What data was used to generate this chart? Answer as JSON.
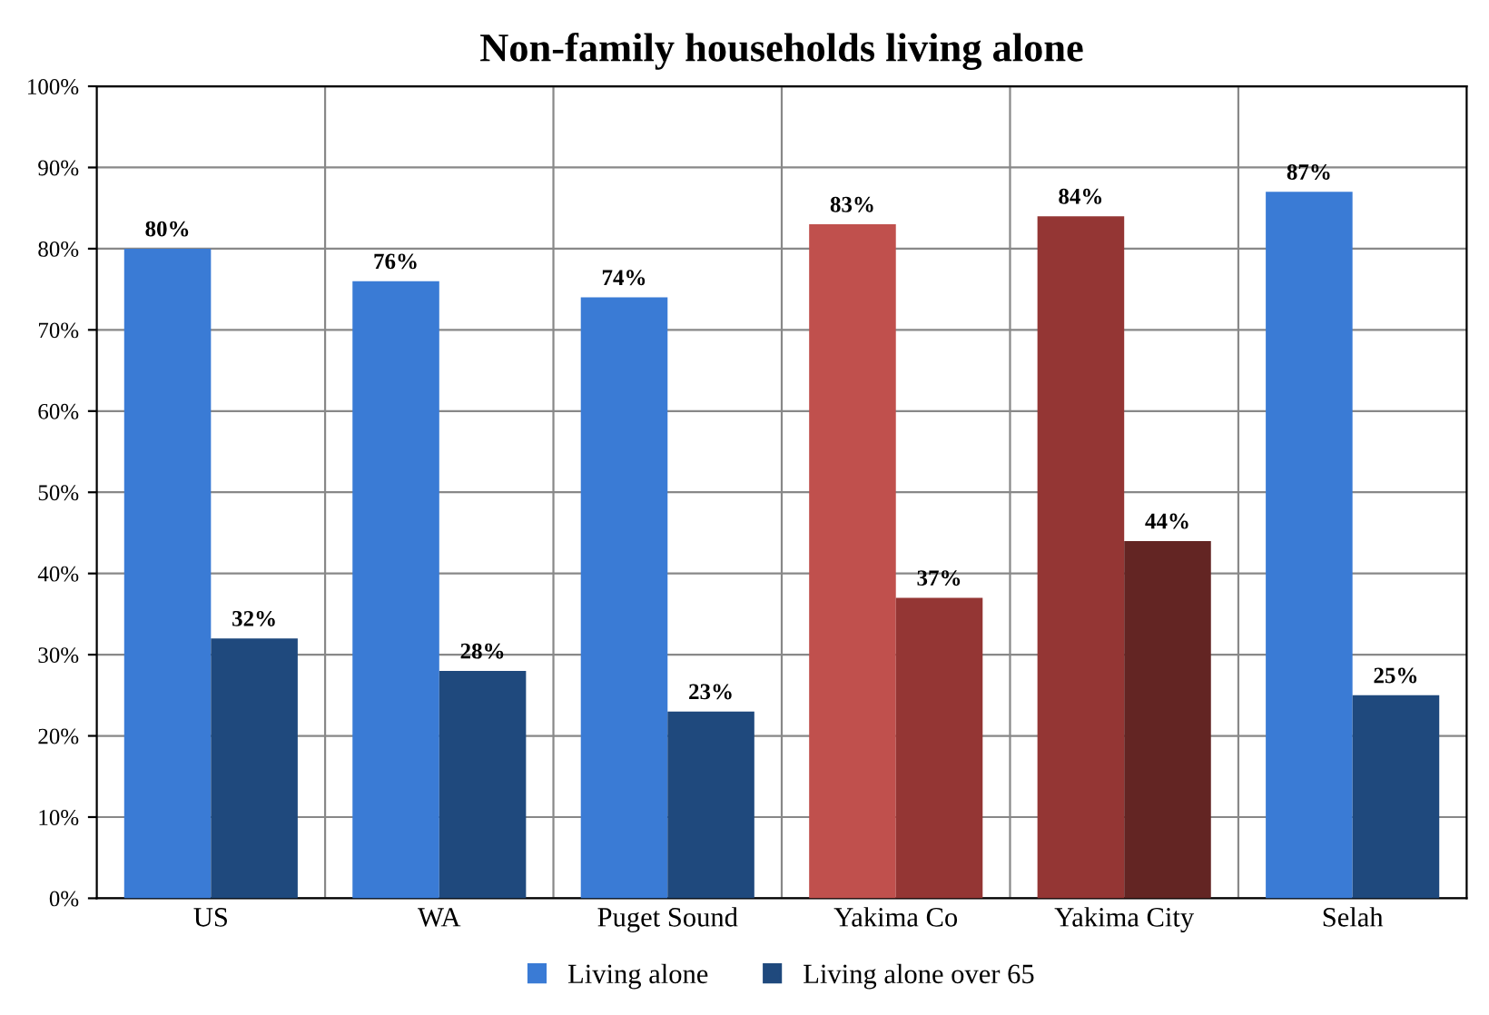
{
  "chart_data": {
    "type": "bar",
    "title": "Non-family households living alone",
    "categories": [
      "US",
      "WA",
      "Puget Sound",
      "Yakima Co",
      "Yakima City",
      "Selah"
    ],
    "series": [
      {
        "name": "Living alone",
        "color": "#3a7bd5",
        "colors": [
          "#3a7bd5",
          "#3a7bd5",
          "#3a7bd5",
          "#c0504d",
          "#943634",
          "#3a7bd5"
        ],
        "values": [
          80,
          76,
          74,
          83,
          84,
          87
        ]
      },
      {
        "name": "Living alone over 65",
        "color": "#1f497d",
        "colors": [
          "#1f497d",
          "#1f497d",
          "#1f497d",
          "#943634",
          "#632523",
          "#1f497d"
        ],
        "values": [
          32,
          28,
          23,
          37,
          44,
          25
        ]
      }
    ],
    "ylim": [
      0,
      100
    ],
    "yticks": [
      {
        "value": 0,
        "label": "0%"
      },
      {
        "value": 10,
        "label": "10%"
      },
      {
        "value": 20,
        "label": "20%"
      },
      {
        "value": 30,
        "label": "30%"
      },
      {
        "value": 40,
        "label": "40%"
      },
      {
        "value": 50,
        "label": "50%"
      },
      {
        "value": 60,
        "label": "60%"
      },
      {
        "value": 70,
        "label": "70%"
      },
      {
        "value": 80,
        "label": "80%"
      },
      {
        "value": 90,
        "label": "90%"
      },
      {
        "value": 100,
        "label": "100%"
      }
    ],
    "value_labels": [
      [
        "80%",
        "76%",
        "74%",
        "83%",
        "84%",
        "87%"
      ],
      [
        "32%",
        "28%",
        "23%",
        "37%",
        "44%",
        "25%"
      ]
    ],
    "grid": true,
    "legend": "bottom"
  }
}
